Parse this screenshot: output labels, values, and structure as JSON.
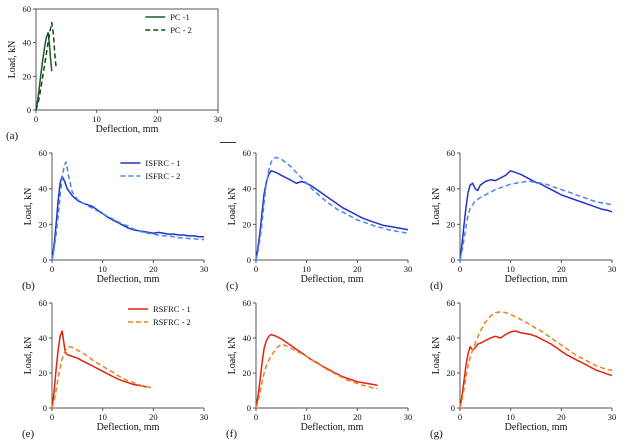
{
  "page": {
    "background": "#ffffff"
  },
  "chart_data": [
    {
      "type": "line",
      "panel_label": "(a)",
      "xlabel": "Deflection, mm",
      "ylabel": "Load, kN",
      "xlim": [
        0,
        30
      ],
      "ylim": [
        0,
        60
      ],
      "xticks": [
        0,
        10,
        20,
        30
      ],
      "yticks": [
        0,
        20,
        40,
        60
      ],
      "box": true,
      "legend": {
        "show": true,
        "fx": 0.6,
        "dy": 8
      },
      "series": [
        {
          "name": "PC -1",
          "color": "#1e5b28",
          "dash": false,
          "x": [
            0,
            0.3,
            0.6,
            1.0,
            1.4,
            1.7,
            2.0,
            2.2,
            2.4,
            2.6
          ],
          "y": [
            0,
            6,
            15,
            27,
            37,
            43,
            46,
            40,
            30,
            23
          ]
        },
        {
          "name": "PC - 2",
          "color": "#14471d",
          "dash": true,
          "x": [
            0,
            0.4,
            0.8,
            1.2,
            1.6,
            2.0,
            2.3,
            2.6,
            2.9,
            3.1,
            3.3
          ],
          "y": [
            0,
            5,
            13,
            22,
            31,
            40,
            47,
            52,
            44,
            33,
            26
          ]
        }
      ]
    },
    {
      "type": "line",
      "panel_label": "(b)",
      "xlabel": "Deflection, mm",
      "ylabel": "Load, kN",
      "xlim": [
        0,
        30
      ],
      "ylim": [
        0,
        60
      ],
      "xticks": [
        0,
        10,
        20,
        30
      ],
      "yticks": [
        0,
        20,
        40,
        60
      ],
      "box": false,
      "legend": {
        "show": true,
        "fx": 0.45,
        "dy": 10
      },
      "series": [
        {
          "name": "ISFRC - 1",
          "color": "#2233cc",
          "dash": false,
          "x": [
            0,
            0.4,
            0.8,
            1.2,
            1.6,
            2,
            2.5,
            3,
            4,
            5,
            6,
            7,
            8,
            9,
            10,
            11,
            12,
            13,
            14,
            15,
            16,
            17,
            18,
            19,
            20,
            21,
            22,
            23,
            24,
            25,
            26,
            27,
            28,
            29,
            30
          ],
          "y": [
            0,
            8,
            20,
            33,
            43,
            47,
            44,
            40,
            36,
            33.5,
            32,
            31,
            30,
            28,
            26,
            24,
            22.5,
            21,
            19.5,
            18,
            17,
            16.5,
            16,
            15.5,
            15,
            15.5,
            15,
            14.5,
            14.5,
            14,
            14,
            13.5,
            13.5,
            13,
            13
          ]
        },
        {
          "name": "ISFRC - 2",
          "color": "#4a86e8",
          "dash": true,
          "x": [
            0,
            0.4,
            0.8,
            1.2,
            1.6,
            2,
            2.4,
            2.8,
            3.2,
            4,
            5,
            6,
            7,
            8,
            9,
            10,
            11,
            12,
            13,
            14,
            15,
            16,
            17,
            18,
            19,
            20,
            21,
            22,
            23,
            24,
            25,
            26,
            27,
            28,
            29,
            30
          ],
          "y": [
            0,
            6,
            14,
            24,
            36,
            46,
            53,
            55,
            48,
            38,
            34,
            32,
            30.5,
            29,
            27.5,
            26,
            24.5,
            23,
            21.5,
            20,
            19,
            17.5,
            16.5,
            15.5,
            15,
            14.5,
            14,
            13.5,
            13.5,
            13,
            12.5,
            12.5,
            12,
            12,
            11.5,
            11.5
          ]
        }
      ]
    },
    {
      "type": "line",
      "panel_label": "(c)",
      "xlabel": "Deflection, mm",
      "ylabel": "Load, kN",
      "xlim": [
        0,
        30
      ],
      "ylim": [
        0,
        60
      ],
      "xticks": [
        0,
        10,
        20,
        30
      ],
      "yticks": [
        0,
        20,
        40,
        60
      ],
      "box": false,
      "legend": {
        "show": false
      },
      "series": [
        {
          "name": "ISFRC - 1",
          "color": "#2233cc",
          "dash": false,
          "x": [
            0,
            0.4,
            0.8,
            1.2,
            1.6,
            2,
            2.5,
            3,
            3.5,
            4,
            5,
            6,
            7,
            8,
            9,
            10,
            11,
            12,
            13,
            14,
            15,
            16,
            17,
            18,
            19,
            20,
            21,
            22,
            23,
            24,
            25,
            26,
            27,
            28,
            29,
            30
          ],
          "y": [
            0,
            7,
            16,
            27,
            37,
            43,
            48,
            50,
            49.5,
            49,
            47.5,
            46,
            44.5,
            43,
            44,
            43,
            41.5,
            39.5,
            37.5,
            35.5,
            33.5,
            31.5,
            29.5,
            28,
            26.5,
            25,
            23.5,
            22.5,
            21.5,
            20.5,
            19.5,
            19,
            18.5,
            18,
            17.5,
            17
          ]
        },
        {
          "name": "ISFRC - 2",
          "color": "#4a86e8",
          "dash": true,
          "x": [
            0,
            0.4,
            0.8,
            1.2,
            1.6,
            2,
            2.5,
            3,
            3.5,
            4,
            5,
            6,
            7,
            8,
            9,
            10,
            11,
            12,
            13,
            14,
            15,
            16,
            17,
            18,
            19,
            20,
            21,
            22,
            23,
            24,
            25,
            26,
            27,
            28,
            29,
            30
          ],
          "y": [
            0,
            5,
            12,
            21,
            32,
            42,
            50,
            55,
            57,
            57.5,
            56.5,
            54.5,
            52,
            49,
            46,
            43,
            40,
            37.5,
            35,
            32.5,
            30.5,
            28.5,
            27,
            25.5,
            24,
            22.5,
            21.5,
            20.5,
            19.5,
            18.5,
            18,
            17,
            16.5,
            16,
            15.5,
            15
          ]
        }
      ]
    },
    {
      "type": "line",
      "panel_label": "(d)",
      "xlabel": "Deflection, mm",
      "ylabel": "Load, kN",
      "xlim": [
        0,
        30
      ],
      "ylim": [
        0,
        60
      ],
      "xticks": [
        0,
        10,
        20,
        30
      ],
      "yticks": [
        0,
        20,
        40,
        60
      ],
      "box": false,
      "legend": {
        "show": false
      },
      "series": [
        {
          "name": "ISFRC - 1",
          "color": "#2233cc",
          "dash": false,
          "x": [
            0,
            0.4,
            0.8,
            1.2,
            1.6,
            2,
            2.5,
            3,
            3.5,
            4,
            5,
            6,
            7,
            8,
            9,
            10,
            11,
            12,
            13,
            14,
            15,
            16,
            17,
            18,
            19,
            20,
            21,
            22,
            23,
            24,
            25,
            26,
            27,
            28,
            29,
            30
          ],
          "y": [
            0,
            9,
            20,
            30,
            38,
            42,
            43,
            40,
            39,
            42,
            44,
            45,
            44.5,
            46,
            47.5,
            50,
            49,
            48,
            46.5,
            45,
            43.5,
            42.5,
            41,
            39.5,
            38,
            36.5,
            35.5,
            34.5,
            33.5,
            32.5,
            31.5,
            30.5,
            29.5,
            28.5,
            28,
            27
          ]
        },
        {
          "name": "ISFRC - 2",
          "color": "#4a86e8",
          "dash": true,
          "x": [
            0,
            0.4,
            0.8,
            1.2,
            1.6,
            2,
            3,
            4,
            5,
            6,
            7,
            8,
            9,
            10,
            11,
            12,
            13,
            14,
            15,
            16,
            17,
            18,
            19,
            20,
            21,
            22,
            23,
            24,
            25,
            26,
            27,
            28,
            29,
            30
          ],
          "y": [
            0,
            5,
            12,
            19,
            25,
            29,
            33,
            35,
            36.5,
            38,
            39.5,
            40.5,
            41.5,
            42.5,
            43,
            43.5,
            44,
            44,
            43.5,
            43,
            42.5,
            41.5,
            40.5,
            39.5,
            38.5,
            37.5,
            36.5,
            35.5,
            34.5,
            33.5,
            32.5,
            32,
            31.5,
            31
          ]
        }
      ]
    },
    {
      "type": "line",
      "panel_label": "(e)",
      "xlabel": "Deflection, mm",
      "ylabel": "Load, kN",
      "xlim": [
        0,
        30
      ],
      "ylim": [
        0,
        60
      ],
      "xticks": [
        0,
        10,
        20,
        30
      ],
      "yticks": [
        0,
        20,
        40,
        60
      ],
      "box": false,
      "legend": {
        "show": true,
        "fx": 0.5,
        "dy": 6
      },
      "series": [
        {
          "name": "RSFRC - 1",
          "color": "#e32212",
          "dash": false,
          "x": [
            0,
            0.4,
            0.8,
            1.2,
            1.6,
            2,
            2.3,
            2.6,
            3,
            3.5,
            4,
            5,
            6,
            7,
            8,
            9,
            10,
            11,
            12,
            13,
            14,
            15,
            16,
            17,
            18,
            18.7
          ],
          "y": [
            0,
            9,
            22,
            33,
            41,
            44,
            38,
            32,
            30.5,
            30,
            29.5,
            28.5,
            27,
            25.5,
            24,
            22.5,
            21,
            19.5,
            18,
            16.5,
            15.5,
            14.5,
            13.5,
            13,
            12.5,
            12
          ]
        },
        {
          "name": "RSFRC - 2",
          "color": "#e8821e",
          "dash": true,
          "x": [
            0,
            0.4,
            0.8,
            1.2,
            1.6,
            2,
            2.5,
            3,
            3.5,
            4,
            5,
            6,
            7,
            8,
            9,
            10,
            11,
            12,
            13,
            14,
            15,
            16,
            17,
            18,
            19,
            20
          ],
          "y": [
            0,
            4,
            10,
            17,
            23,
            28,
            32,
            34.5,
            35,
            34.5,
            33,
            31.5,
            29.5,
            27.5,
            25.5,
            24,
            22,
            20.5,
            18.5,
            17,
            15.5,
            14.5,
            13.5,
            12.5,
            12,
            11.5
          ]
        }
      ]
    },
    {
      "type": "line",
      "panel_label": "(f)",
      "xlabel": "Deflection, mm",
      "ylabel": "Load, kN",
      "xlim": [
        0,
        30
      ],
      "ylim": [
        0,
        60
      ],
      "xticks": [
        0,
        10,
        20,
        30
      ],
      "yticks": [
        0,
        20,
        40,
        60
      ],
      "box": false,
      "legend": {
        "show": false
      },
      "series": [
        {
          "name": "RSFRC - 1",
          "color": "#e32212",
          "dash": false,
          "x": [
            0,
            0.4,
            0.8,
            1.2,
            1.6,
            2,
            2.5,
            3,
            3.5,
            4,
            5,
            6,
            7,
            8,
            9,
            10,
            11,
            12,
            13,
            14,
            15,
            16,
            17,
            18,
            19,
            20,
            21,
            22,
            23,
            24
          ],
          "y": [
            0,
            7,
            16,
            26,
            34,
            38,
            41,
            42,
            41.5,
            41,
            39.5,
            37.5,
            35.5,
            33.5,
            31.5,
            29.5,
            27.5,
            26,
            24,
            22.5,
            21,
            19.5,
            18,
            17,
            16,
            15,
            14.5,
            14,
            13.5,
            13
          ]
        },
        {
          "name": "RSFRC - 2",
          "color": "#e8821e",
          "dash": true,
          "x": [
            0,
            0.4,
            0.8,
            1.2,
            1.6,
            2,
            3,
            4,
            5,
            6,
            7,
            8,
            9,
            10,
            11,
            12,
            13,
            14,
            15,
            16,
            17,
            18,
            19,
            20,
            21,
            22,
            23,
            24
          ],
          "y": [
            0,
            3.5,
            9,
            15,
            20,
            24,
            30,
            34,
            36.5,
            35.5,
            34,
            32.5,
            31,
            29.5,
            27.5,
            25.5,
            24,
            22,
            20.5,
            19,
            17.5,
            16,
            15,
            14,
            13,
            12.5,
            11.5,
            11
          ]
        }
      ]
    },
    {
      "type": "line",
      "panel_label": "(g)",
      "xlabel": "Deflection, mm",
      "ylabel": "Load, kN",
      "xlim": [
        0,
        30
      ],
      "ylim": [
        0,
        60
      ],
      "xticks": [
        0,
        10,
        20,
        30
      ],
      "yticks": [
        0,
        20,
        40,
        60
      ],
      "box": false,
      "legend": {
        "show": false
      },
      "series": [
        {
          "name": "RSFRC - 1",
          "color": "#e32212",
          "dash": false,
          "x": [
            0,
            0.4,
            0.8,
            1.2,
            1.6,
            2,
            2.5,
            3,
            3.5,
            4,
            5,
            6,
            7,
            8,
            9,
            10,
            11,
            12,
            13,
            14,
            15,
            16,
            17,
            18,
            19,
            20,
            21,
            22,
            23,
            24,
            25,
            26,
            27,
            28,
            29,
            30
          ],
          "y": [
            0,
            7,
            16,
            25,
            31,
            35,
            33,
            34.5,
            36.5,
            37,
            38.5,
            40,
            41,
            40,
            42,
            43.5,
            44,
            43,
            42.5,
            42,
            41,
            39.5,
            38,
            36.5,
            34.5,
            32.5,
            30.5,
            29,
            27.5,
            26,
            24.5,
            23,
            21.5,
            20.5,
            19.5,
            18.5
          ]
        },
        {
          "name": "RSFRC - 2",
          "color": "#e8821e",
          "dash": true,
          "x": [
            0,
            0.4,
            0.8,
            1.2,
            1.6,
            2,
            3,
            4,
            5,
            6,
            7,
            8,
            9,
            10,
            11,
            12,
            13,
            14,
            15,
            16,
            17,
            18,
            19,
            20,
            21,
            22,
            23,
            24,
            25,
            26,
            27,
            28,
            29,
            30
          ],
          "y": [
            0,
            4.5,
            11,
            18,
            24,
            29,
            37,
            44,
            49,
            52.5,
            54.5,
            55,
            54.5,
            53.5,
            52,
            50.5,
            49,
            47.5,
            45.5,
            44,
            42,
            40,
            38,
            36,
            34,
            32,
            30,
            28.5,
            27,
            25.5,
            24,
            23,
            22,
            21.5
          ]
        }
      ]
    }
  ]
}
